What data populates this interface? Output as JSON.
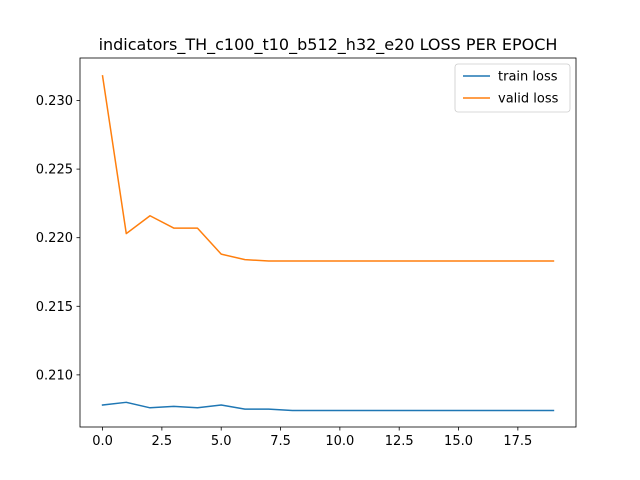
{
  "chart_data": {
    "type": "line",
    "title": "indicators_TH_c100_t10_b512_h32_e20 LOSS PER EPOCH",
    "xlabel": "",
    "ylabel": "",
    "x": [
      0,
      1,
      2,
      3,
      4,
      5,
      6,
      7,
      8,
      9,
      10,
      11,
      12,
      13,
      14,
      15,
      16,
      17,
      18,
      19
    ],
    "xlim": [
      -0.95,
      19.95
    ],
    "ylim": [
      0.2062,
      0.2331
    ],
    "xticks": [
      0.0,
      2.5,
      5.0,
      7.5,
      10.0,
      12.5,
      15.0,
      17.5
    ],
    "xtick_labels": [
      "0.0",
      "2.5",
      "5.0",
      "7.5",
      "10.0",
      "12.5",
      "15.0",
      "17.5"
    ],
    "yticks": [
      0.21,
      0.215,
      0.22,
      0.225,
      0.23
    ],
    "ytick_labels": [
      "0.210",
      "0.215",
      "0.220",
      "0.225",
      "0.230"
    ],
    "grid": false,
    "legend": "top-right",
    "series": [
      {
        "name": "train loss",
        "color": "#1f77b4",
        "values": [
          0.2078,
          0.208,
          0.2076,
          0.2077,
          0.2076,
          0.2078,
          0.2075,
          0.2075,
          0.2074,
          0.2074,
          0.2074,
          0.2074,
          0.2074,
          0.2074,
          0.2074,
          0.2074,
          0.2074,
          0.2074,
          0.2074,
          0.2074
        ]
      },
      {
        "name": "valid loss",
        "color": "#ff7f0e",
        "values": [
          0.2318,
          0.2203,
          0.2216,
          0.2207,
          0.2207,
          0.2188,
          0.2184,
          0.2183,
          0.2183,
          0.2183,
          0.2183,
          0.2183,
          0.2183,
          0.2183,
          0.2183,
          0.2183,
          0.2183,
          0.2183,
          0.2183,
          0.2183
        ]
      }
    ]
  }
}
